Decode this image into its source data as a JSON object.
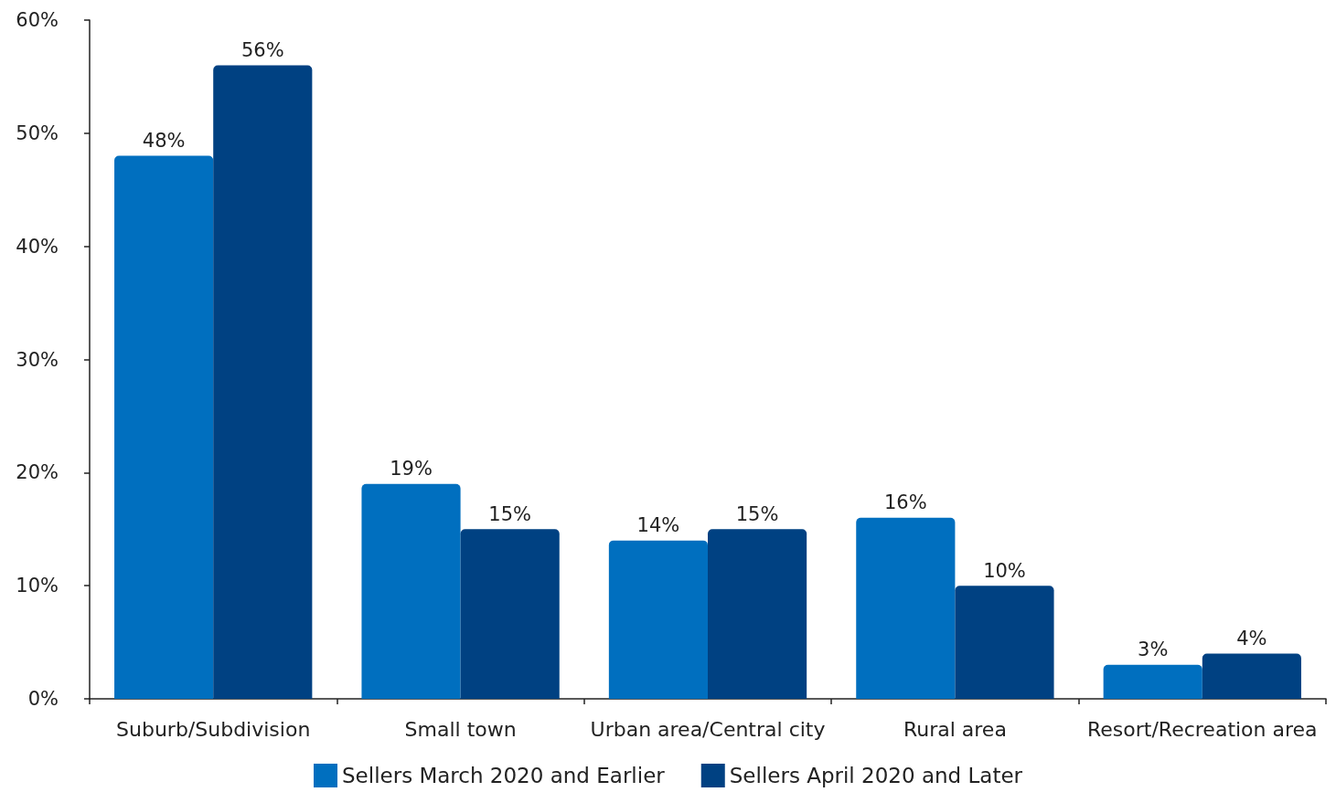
{
  "chart_data": {
    "type": "bar",
    "categories": [
      "Suburb/Subdivision",
      "Small town",
      "Urban area/Central city",
      "Rural area",
      "Resort/Recreation area"
    ],
    "series": [
      {
        "name": "Sellers March 2020 and Earlier",
        "color": "#006fbf",
        "values": [
          48,
          19,
          14,
          16,
          3
        ],
        "value_labels": [
          "48%",
          "19%",
          "14%",
          "16%",
          "3%"
        ]
      },
      {
        "name": "Sellers April 2020 and Later",
        "color": "#004182",
        "values": [
          56,
          15,
          15,
          10,
          4
        ],
        "value_labels": [
          "56%",
          "15%",
          "15%",
          "10%",
          "4%"
        ]
      }
    ],
    "ylim": [
      0,
      60
    ],
    "yticks": [
      {
        "value": 0,
        "label": "0%"
      },
      {
        "value": 10,
        "label": "10%"
      },
      {
        "value": 20,
        "label": "20%"
      },
      {
        "value": 30,
        "label": "30%"
      },
      {
        "value": 40,
        "label": "40%"
      },
      {
        "value": 50,
        "label": "50%"
      },
      {
        "value": 60,
        "label": "60%"
      }
    ],
    "grid": false,
    "legend": "bottom"
  }
}
